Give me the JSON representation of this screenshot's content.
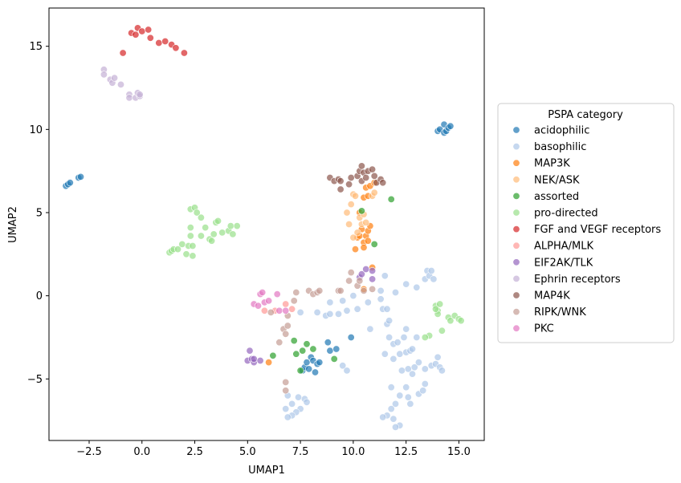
{
  "chart_data": {
    "type": "scatter",
    "xlabel": "UMAP1",
    "ylabel": "UMAP2",
    "xlim": [
      -4.4,
      16.2
    ],
    "ylim": [
      -8.7,
      17.3
    ],
    "xticks": [
      -2.5,
      0.0,
      2.5,
      5.0,
      7.5,
      10.0,
      12.5,
      15.0
    ],
    "xtick_labels": [
      "−2.5",
      "0.0",
      "2.5",
      "5.0",
      "7.5",
      "10.0",
      "12.5",
      "15.0"
    ],
    "yticks": [
      -5,
      0,
      5,
      10,
      15
    ],
    "ytick_labels": [
      "−5",
      "0",
      "5",
      "10",
      "15"
    ],
    "grid": false,
    "legend": {
      "title": "PSPA category",
      "placement": "center-right-outside"
    },
    "series": [
      {
        "name": "acidophilic",
        "color": "#1f77b4",
        "points": [
          [
            -3.6,
            6.6
          ],
          [
            -3.5,
            6.7
          ],
          [
            -3.4,
            6.8
          ],
          [
            -3.0,
            7.1
          ],
          [
            -2.9,
            7.15
          ],
          [
            14.0,
            9.9
          ],
          [
            14.1,
            10.0
          ],
          [
            14.3,
            9.8
          ],
          [
            14.3,
            10.3
          ],
          [
            14.4,
            9.9
          ],
          [
            14.5,
            10.1
          ],
          [
            14.6,
            10.2
          ],
          [
            7.6,
            -4.5
          ],
          [
            7.7,
            -4.3
          ],
          [
            7.8,
            -4.0
          ],
          [
            7.9,
            -4.4
          ],
          [
            8.0,
            -3.7
          ],
          [
            8.1,
            -3.9
          ],
          [
            8.2,
            -4.6
          ],
          [
            8.3,
            -4.1
          ],
          [
            8.4,
            -4.0
          ],
          [
            8.8,
            -2.8
          ],
          [
            8.9,
            -3.3
          ],
          [
            9.2,
            -3.2
          ],
          [
            9.9,
            -2.5
          ]
        ]
      },
      {
        "name": "basophilic",
        "color": "#aec7e8",
        "points": [
          [
            7.5,
            -1.0
          ],
          [
            8.3,
            -1.0
          ],
          [
            8.7,
            -1.2
          ],
          [
            8.9,
            -1.1
          ],
          [
            9.3,
            -1.1
          ],
          [
            9.7,
            -0.9
          ],
          [
            10.2,
            -0.8
          ],
          [
            10.7,
            -0.4
          ],
          [
            11.3,
            -0.2
          ],
          [
            11.4,
            -0.8
          ],
          [
            11.6,
            -1.7
          ],
          [
            11.7,
            -2.5
          ],
          [
            11.9,
            -2.9
          ],
          [
            12.1,
            -2.8
          ],
          [
            12.4,
            -2.5
          ],
          [
            12.2,
            -3.5
          ],
          [
            12.5,
            -3.4
          ],
          [
            12.7,
            -3.3
          ],
          [
            12.8,
            -3.2
          ],
          [
            12.6,
            -4.4
          ],
          [
            12.9,
            -4.3
          ],
          [
            13.1,
            -4.0
          ],
          [
            13.4,
            -4.4
          ],
          [
            13.7,
            -4.2
          ],
          [
            13.9,
            -4.1
          ],
          [
            14.0,
            -3.7
          ],
          [
            14.1,
            -4.3
          ],
          [
            14.2,
            -4.5
          ],
          [
            11.3,
            0.3
          ],
          [
            11.5,
            1.2
          ],
          [
            11.6,
            -0.8
          ],
          [
            12.0,
            0.2
          ],
          [
            12.5,
            0.7
          ],
          [
            13.0,
            0.5
          ],
          [
            13.4,
            1.0
          ],
          [
            13.5,
            1.5
          ],
          [
            13.6,
            1.2
          ],
          [
            13.7,
            1.5
          ],
          [
            13.8,
            1.0
          ],
          [
            13.0,
            -2.5
          ],
          [
            12.8,
            -4.7
          ],
          [
            12.5,
            -5.5
          ],
          [
            12.2,
            -6.0
          ],
          [
            12.0,
            -6.5
          ],
          [
            11.8,
            -6.8
          ],
          [
            11.6,
            -7.2
          ],
          [
            11.4,
            -7.3
          ],
          [
            11.9,
            -7.4
          ],
          [
            12.2,
            -7.8
          ],
          [
            12.0,
            -7.9
          ],
          [
            12.6,
            -6.1
          ],
          [
            12.7,
            -6.5
          ],
          [
            13.1,
            -5.9
          ],
          [
            13.3,
            -5.7
          ],
          [
            13.4,
            -5.3
          ],
          [
            11.8,
            -5.5
          ],
          [
            12.3,
            -4.5
          ],
          [
            11.9,
            -3.8
          ],
          [
            11.5,
            -3.5
          ],
          [
            9.5,
            -4.2
          ],
          [
            9.7,
            -4.5
          ],
          [
            7.7,
            -6.2
          ],
          [
            7.8,
            -6.4
          ],
          [
            7.5,
            -6.8
          ],
          [
            7.3,
            -7.0
          ],
          [
            7.1,
            -7.2
          ],
          [
            6.9,
            -7.3
          ],
          [
            7.1,
            -6.5
          ],
          [
            6.8,
            -6.8
          ],
          [
            6.9,
            -6.0
          ],
          [
            7.4,
            -6.1
          ],
          [
            10.0,
            0.0
          ],
          [
            9.5,
            -0.3
          ],
          [
            8.9,
            -0.4
          ],
          [
            11.7,
            -1.5
          ],
          [
            12.5,
            -2.0
          ],
          [
            10.8,
            -2.0
          ]
        ]
      },
      {
        "name": "MAP3K",
        "color": "#ff7f0e",
        "points": [
          [
            10.2,
            3.5
          ],
          [
            10.3,
            3.6
          ],
          [
            10.4,
            4.0
          ],
          [
            10.5,
            3.2
          ],
          [
            10.5,
            2.9
          ],
          [
            10.6,
            3.6
          ],
          [
            10.7,
            3.9
          ],
          [
            10.7,
            3.3
          ],
          [
            10.8,
            4.2
          ],
          [
            10.5,
            5.9
          ],
          [
            10.6,
            6.5
          ],
          [
            10.7,
            6.0
          ],
          [
            10.8,
            6.6
          ],
          [
            11.0,
            6.8
          ],
          [
            10.9,
            1.7
          ],
          [
            10.5,
            0.4
          ],
          [
            6.0,
            -4.0
          ],
          [
            10.3,
            5.0
          ],
          [
            10.1,
            2.8
          ]
        ]
      },
      {
        "name": "NEK/ASK",
        "color": "#ffbb78",
        "points": [
          [
            9.7,
            5.0
          ],
          [
            9.9,
            5.5
          ],
          [
            10.0,
            6.1
          ],
          [
            10.1,
            6.0
          ],
          [
            10.3,
            4.7
          ],
          [
            10.4,
            4.3
          ],
          [
            10.5,
            4.9
          ],
          [
            10.6,
            4.4
          ],
          [
            10.2,
            3.8
          ],
          [
            10.0,
            3.5
          ],
          [
            9.8,
            4.3
          ],
          [
            10.9,
            6.0
          ],
          [
            11.0,
            6.2
          ]
        ]
      },
      {
        "name": "assorted",
        "color": "#2ca02c",
        "points": [
          [
            7.2,
            -2.7
          ],
          [
            7.3,
            -3.5
          ],
          [
            7.5,
            -4.5
          ],
          [
            7.6,
            -3.3
          ],
          [
            7.8,
            -2.9
          ],
          [
            8.1,
            -3.2
          ],
          [
            9.1,
            -3.8
          ],
          [
            6.2,
            -3.6
          ],
          [
            10.4,
            5.1
          ],
          [
            11.0,
            3.1
          ],
          [
            11.8,
            5.8
          ]
        ]
      },
      {
        "name": "pro-directed",
        "color": "#98df8a",
        "points": [
          [
            1.3,
            2.6
          ],
          [
            1.4,
            2.7
          ],
          [
            1.5,
            2.8
          ],
          [
            1.7,
            2.8
          ],
          [
            1.9,
            3.1
          ],
          [
            2.1,
            2.5
          ],
          [
            2.2,
            3.0
          ],
          [
            2.4,
            2.4
          ],
          [
            2.4,
            3.0
          ],
          [
            2.3,
            3.6
          ],
          [
            2.3,
            4.1
          ],
          [
            2.3,
            5.2
          ],
          [
            2.5,
            5.3
          ],
          [
            2.6,
            5.0
          ],
          [
            2.8,
            4.7
          ],
          [
            2.8,
            3.6
          ],
          [
            3.0,
            4.1
          ],
          [
            3.2,
            3.4
          ],
          [
            3.3,
            3.3
          ],
          [
            3.4,
            3.7
          ],
          [
            3.5,
            4.4
          ],
          [
            3.6,
            4.5
          ],
          [
            3.8,
            3.8
          ],
          [
            4.1,
            3.9
          ],
          [
            4.2,
            4.2
          ],
          [
            4.3,
            3.7
          ],
          [
            4.5,
            4.2
          ],
          [
            13.9,
            -0.6
          ],
          [
            14.0,
            -0.9
          ],
          [
            14.1,
            -0.5
          ],
          [
            14.0,
            -1.1
          ],
          [
            13.6,
            -2.4
          ],
          [
            13.4,
            -2.5
          ],
          [
            14.2,
            -2.1
          ],
          [
            14.5,
            -1.3
          ],
          [
            14.6,
            -1.5
          ],
          [
            14.8,
            -1.2
          ],
          [
            15.0,
            -1.4
          ],
          [
            15.1,
            -1.5
          ],
          [
            13.9,
            -0.8
          ]
        ]
      },
      {
        "name": "FGF and VEGF receptors",
        "color": "#d62728",
        "points": [
          [
            -0.9,
            14.6
          ],
          [
            -0.5,
            15.8
          ],
          [
            -0.3,
            15.7
          ],
          [
            -0.2,
            16.1
          ],
          [
            0.0,
            15.9
          ],
          [
            0.3,
            16.0
          ],
          [
            0.4,
            15.5
          ],
          [
            0.8,
            15.2
          ],
          [
            1.1,
            15.3
          ],
          [
            1.4,
            15.1
          ],
          [
            1.6,
            14.9
          ],
          [
            2.0,
            14.6
          ]
        ]
      },
      {
        "name": "ALPHA/MLK",
        "color": "#ff9896",
        "points": [
          [
            5.8,
            -0.9
          ],
          [
            6.3,
            -0.9
          ],
          [
            6.8,
            -0.5
          ],
          [
            7.1,
            -0.8
          ]
        ]
      },
      {
        "name": "EIF2AK/TLK",
        "color": "#9467bd",
        "points": [
          [
            5.1,
            -3.3
          ],
          [
            5.0,
            -3.9
          ],
          [
            5.2,
            -3.8
          ],
          [
            5.3,
            -4.0
          ],
          [
            5.3,
            -3.8
          ],
          [
            5.6,
            -3.9
          ],
          [
            10.3,
            1.1
          ],
          [
            10.4,
            1.3
          ],
          [
            10.6,
            1.6
          ],
          [
            10.9,
            1.5
          ],
          [
            10.9,
            1.0
          ]
        ]
      },
      {
        "name": "Ephrin receptors",
        "color": "#c5b0d5",
        "points": [
          [
            -1.8,
            13.6
          ],
          [
            -1.8,
            13.3
          ],
          [
            -1.5,
            13.0
          ],
          [
            -1.4,
            12.8
          ],
          [
            -1.3,
            13.1
          ],
          [
            -1.0,
            12.7
          ],
          [
            -0.6,
            12.1
          ],
          [
            -0.6,
            11.9
          ],
          [
            -0.3,
            11.9
          ],
          [
            -0.2,
            12.2
          ],
          [
            -0.1,
            12.0
          ],
          [
            -0.1,
            12.1
          ]
        ]
      },
      {
        "name": "MAP4K",
        "color": "#8c564b",
        "points": [
          [
            8.9,
            7.1
          ],
          [
            9.1,
            6.9
          ],
          [
            9.3,
            7.0
          ],
          [
            9.4,
            6.4
          ],
          [
            9.4,
            6.9
          ],
          [
            9.8,
            6.7
          ],
          [
            9.9,
            7.1
          ],
          [
            10.2,
            7.2
          ],
          [
            10.3,
            7.5
          ],
          [
            10.4,
            7.8
          ],
          [
            10.4,
            6.9
          ],
          [
            10.5,
            7.4
          ],
          [
            10.6,
            7.1
          ],
          [
            10.7,
            7.5
          ],
          [
            10.9,
            7.6
          ],
          [
            11.0,
            7.2
          ],
          [
            11.1,
            6.8
          ],
          [
            11.3,
            7.0
          ],
          [
            11.4,
            6.8
          ]
        ]
      },
      {
        "name": "RIPK/WNK",
        "color": "#c49c94",
        "points": [
          [
            6.1,
            -1.0
          ],
          [
            6.5,
            -2.8
          ],
          [
            6.7,
            -2.0
          ],
          [
            6.8,
            -2.3
          ],
          [
            6.9,
            -1.8
          ],
          [
            6.9,
            -1.2
          ],
          [
            7.2,
            -0.3
          ],
          [
            7.3,
            0.2
          ],
          [
            7.9,
            0.3
          ],
          [
            8.1,
            0.1
          ],
          [
            8.3,
            0.2
          ],
          [
            8.4,
            0.3
          ],
          [
            9.3,
            0.3
          ],
          [
            9.4,
            0.3
          ],
          [
            9.8,
            0.9
          ],
          [
            9.9,
            1.4
          ],
          [
            10.2,
            0.6
          ],
          [
            10.3,
            0.9
          ],
          [
            10.5,
            0.3
          ],
          [
            10.9,
            0.4
          ],
          [
            6.8,
            -5.2
          ],
          [
            6.8,
            -5.7
          ]
        ]
      },
      {
        "name": "PKC",
        "color": "#e377c2",
        "points": [
          [
            5.3,
            -0.5
          ],
          [
            5.5,
            -0.6
          ],
          [
            5.6,
            0.1
          ],
          [
            5.7,
            0.2
          ],
          [
            5.8,
            -0.4
          ],
          [
            6.0,
            -0.3
          ],
          [
            6.4,
            0.1
          ],
          [
            6.5,
            -0.9
          ],
          [
            6.8,
            -0.9
          ]
        ]
      }
    ]
  }
}
